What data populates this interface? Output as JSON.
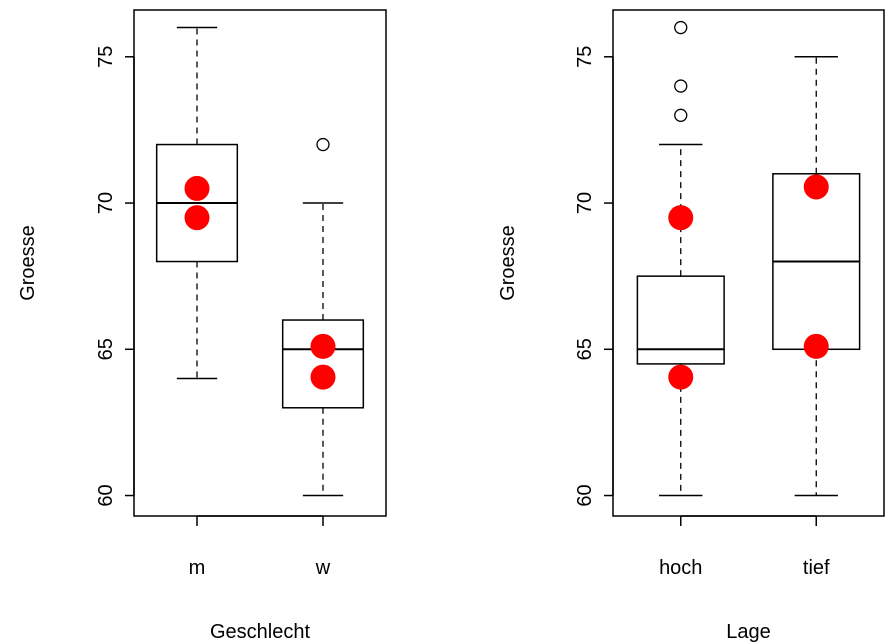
{
  "colors": {
    "point": "#ff0000",
    "ink": "#000000",
    "background": "#ffffff"
  },
  "chart_data": [
    {
      "type": "boxplot",
      "xlabel": "Geschlecht",
      "ylabel": "Groesse",
      "ylim": [
        59.3,
        76.6
      ],
      "yticks": [
        "60",
        "65",
        "70",
        "75"
      ],
      "categories": [
        "m",
        "w"
      ],
      "boxes": [
        {
          "name": "m",
          "whisker_low": 64,
          "q1": 68,
          "median": 70,
          "q3": 72,
          "whisker_high": 76,
          "outliers": []
        },
        {
          "name": "w",
          "whisker_low": 60,
          "q1": 63,
          "median": 65,
          "q3": 66,
          "whisker_high": 70,
          "outliers": [
            72
          ]
        }
      ],
      "highlight_points": [
        {
          "category": "m",
          "y": 70.5
        },
        {
          "category": "m",
          "y": 69.5
        },
        {
          "category": "w",
          "y": 65.1
        },
        {
          "category": "w",
          "y": 64.05
        }
      ]
    },
    {
      "type": "boxplot",
      "xlabel": "Lage",
      "ylabel": "Groesse",
      "ylim": [
        59.3,
        76.6
      ],
      "yticks": [
        "60",
        "65",
        "70",
        "75"
      ],
      "categories": [
        "hoch",
        "tief"
      ],
      "boxes": [
        {
          "name": "hoch",
          "whisker_low": 60,
          "q1": 64.5,
          "median": 65,
          "q3": 67.5,
          "whisker_high": 72,
          "outliers": [
            73,
            74,
            76
          ]
        },
        {
          "name": "tief",
          "whisker_low": 60,
          "q1": 65,
          "median": 68,
          "q3": 71,
          "whisker_high": 75,
          "outliers": []
        }
      ],
      "highlight_points": [
        {
          "category": "hoch",
          "y": 69.5
        },
        {
          "category": "hoch",
          "y": 64.05
        },
        {
          "category": "tief",
          "y": 70.55
        },
        {
          "category": "tief",
          "y": 65.1
        }
      ]
    }
  ]
}
